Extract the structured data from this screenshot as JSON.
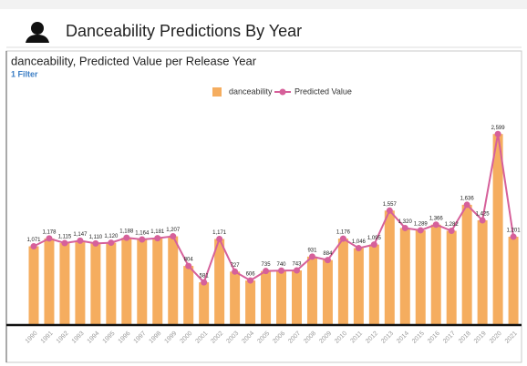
{
  "header": {
    "title": "Danceability Predictions By Year"
  },
  "filter": "1 Filter",
  "chart_data": {
    "type": "bar-line",
    "title": "danceability, Predicted Value per Release Year",
    "categories": [
      "1990",
      "1991",
      "1992",
      "1993",
      "1994",
      "1995",
      "1996",
      "1997",
      "1998",
      "1999",
      "2000",
      "2001",
      "2002",
      "2003",
      "2004",
      "2005",
      "2006",
      "2007",
      "2008",
      "2009",
      "2010",
      "2011",
      "2012",
      "2013",
      "2014",
      "2015",
      "2016",
      "2017",
      "2018",
      "2019",
      "2020",
      "2021"
    ],
    "series": [
      {
        "name": "danceability",
        "type": "bar",
        "color": "#f5ad5f",
        "values": [
          1071,
          1178,
          1115,
          1147,
          1110,
          1120,
          1188,
          1164,
          1181,
          1207,
          804,
          581,
          1171,
          727,
          606,
          735,
          740,
          743,
          931,
          884,
          1176,
          1046,
          1095,
          1557,
          1320,
          1289,
          1366,
          1282,
          1636,
          1425,
          2599,
          1201
        ]
      },
      {
        "name": "Predicted Value",
        "type": "line",
        "color": "#d6609a",
        "values": [
          1071,
          1178,
          1115,
          1147,
          1110,
          1120,
          1188,
          1164,
          1181,
          1207,
          804,
          581,
          1171,
          727,
          606,
          735,
          740,
          743,
          931,
          884,
          1176,
          1046,
          1095,
          1557,
          1320,
          1289,
          1366,
          1282,
          1636,
          1425,
          2599,
          1201
        ],
        "value_labels": [
          "1,071",
          "1,178",
          "1,115",
          "1,147",
          "1,110",
          "1,120",
          "1,188",
          "1,164",
          "1,181",
          "1,207",
          "804",
          "581",
          "1,171",
          "727",
          "606",
          "735",
          "740",
          "743",
          "931",
          "884",
          "1,176",
          "1,046",
          "1,095",
          "1,557",
          "1,320",
          "1,289",
          "1,366",
          "1,282",
          "1,636",
          "1,425",
          "2,599",
          "1,201"
        ]
      }
    ],
    "ylim": [
      0,
      2750
    ],
    "legend": "top"
  }
}
